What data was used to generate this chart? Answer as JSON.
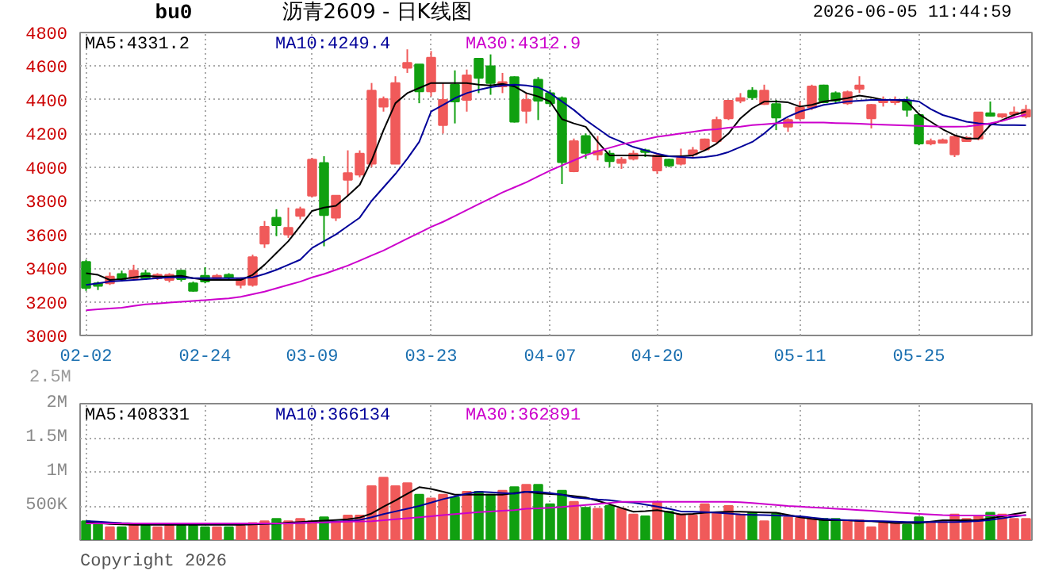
{
  "chart_data": [
    {
      "type": "candlestick",
      "title": "沥青2609 - 日K线图",
      "annotations": [
        "bu0",
        "2026-06-05 11:44:59",
        "2.5M"
      ],
      "categories": [
        "02-02",
        null,
        null,
        null,
        null,
        null,
        null,
        null,
        null,
        null,
        "02-24",
        null,
        null,
        null,
        null,
        null,
        null,
        null,
        null,
        "03-09",
        null,
        null,
        null,
        null,
        null,
        null,
        null,
        null,
        null,
        "03-23",
        null,
        null,
        null,
        null,
        null,
        null,
        null,
        null,
        null,
        "04-07",
        null,
        null,
        null,
        null,
        null,
        null,
        null,
        null,
        "04-20",
        null,
        null,
        null,
        null,
        null,
        null,
        null,
        null,
        null,
        null,
        null,
        "05-11",
        null,
        null,
        null,
        null,
        null,
        null,
        null,
        null,
        null,
        "05-25",
        null,
        null,
        null,
        null,
        null,
        null,
        null,
        null,
        null
      ],
      "ohlc": [
        [
          3437,
          3450,
          3265,
          3283
        ],
        [
          3310,
          3320,
          3270,
          3295
        ],
        [
          3310,
          3375,
          3300,
          3350
        ],
        [
          3365,
          3385,
          3320,
          3335
        ],
        [
          3340,
          3420,
          3330,
          3385
        ],
        [
          3370,
          3390,
          3330,
          3340
        ],
        [
          3340,
          3370,
          3330,
          3360
        ],
        [
          3330,
          3370,
          3315,
          3360
        ],
        [
          3385,
          3390,
          3320,
          3335
        ],
        [
          3310,
          3320,
          3260,
          3265
        ],
        [
          3355,
          3405,
          3310,
          3320
        ],
        [
          3340,
          3365,
          3330,
          3355
        ],
        [
          3360,
          3370,
          3330,
          3345
        ],
        [
          3300,
          3345,
          3280,
          3335
        ],
        [
          3300,
          3480,
          3290,
          3465
        ],
        [
          3545,
          3680,
          3520,
          3645
        ],
        [
          3700,
          3750,
          3590,
          3655
        ],
        [
          3600,
          3760,
          3580,
          3640
        ],
        [
          3710,
          3765,
          3690,
          3750
        ],
        [
          3830,
          4055,
          3820,
          4045
        ],
        [
          4025,
          4065,
          3530,
          3715
        ],
        [
          3700,
          3830,
          3680,
          3830
        ],
        [
          3925,
          4100,
          3830,
          3965
        ],
        [
          3955,
          4100,
          3940,
          4080
        ],
        [
          4020,
          4500,
          4000,
          4455
        ],
        [
          4360,
          4420,
          4330,
          4405
        ],
        [
          4020,
          4540,
          4020,
          4500
        ],
        [
          4590,
          4700,
          4560,
          4620
        ],
        [
          4610,
          4610,
          4380,
          4450
        ],
        [
          4450,
          4690,
          4420,
          4650
        ],
        [
          4250,
          4500,
          4200,
          4400
        ],
        [
          4490,
          4575,
          4260,
          4390
        ],
        [
          4400,
          4580,
          4330,
          4545
        ],
        [
          4645,
          4645,
          4440,
          4530
        ],
        [
          4600,
          4670,
          4430,
          4500
        ],
        [
          4480,
          4560,
          4440,
          4505
        ],
        [
          4535,
          4540,
          4265,
          4270
        ],
        [
          4335,
          4440,
          4260,
          4400
        ],
        [
          4520,
          4535,
          4280,
          4395
        ],
        [
          4440,
          4460,
          4360,
          4380
        ],
        [
          4410,
          4420,
          3900,
          4030
        ],
        [
          3975,
          4170,
          3970,
          4155
        ],
        [
          4185,
          4200,
          4050,
          4085
        ],
        [
          4075,
          4185,
          4040,
          4095
        ],
        [
          4080,
          4100,
          4000,
          4035
        ],
        [
          4025,
          4060,
          3990,
          4045
        ],
        [
          4050,
          4100,
          4040,
          4080
        ],
        [
          4100,
          4110,
          4060,
          4090
        ],
        [
          3980,
          4080,
          3960,
          4070
        ],
        [
          4045,
          4050,
          4000,
          4010
        ],
        [
          4020,
          4110,
          4010,
          4055
        ],
        [
          4075,
          4120,
          4060,
          4100
        ],
        [
          4105,
          4170,
          4100,
          4165
        ],
        [
          4155,
          4300,
          4140,
          4280
        ],
        [
          4290,
          4395,
          4280,
          4395
        ],
        [
          4395,
          4440,
          4380,
          4410
        ],
        [
          4455,
          4475,
          4400,
          4415
        ],
        [
          4375,
          4490,
          4370,
          4455
        ],
        [
          4375,
          4400,
          4220,
          4295
        ],
        [
          4240,
          4290,
          4210,
          4280
        ],
        [
          4290,
          4390,
          4280,
          4355
        ],
        [
          4355,
          4490,
          4340,
          4480
        ],
        [
          4485,
          4490,
          4380,
          4385
        ],
        [
          4440,
          4450,
          4380,
          4395
        ],
        [
          4380,
          4455,
          4370,
          4445
        ],
        [
          4465,
          4540,
          4440,
          4485
        ],
        [
          4290,
          4375,
          4230,
          4370
        ],
        [
          4385,
          4420,
          4360,
          4400
        ],
        [
          4385,
          4420,
          4370,
          4395
        ],
        [
          4390,
          4420,
          4300,
          4340
        ],
        [
          4310,
          4320,
          4130,
          4140
        ],
        [
          4140,
          4170,
          4130,
          4155
        ],
        [
          4145,
          4170,
          4140,
          4160
        ],
        [
          4075,
          4190,
          4060,
          4180
        ],
        [
          4155,
          4185,
          4150,
          4175
        ],
        [
          4170,
          4325,
          4160,
          4325
        ],
        [
          4320,
          4390,
          4300,
          4305
        ],
        [
          4300,
          4320,
          4290,
          4315
        ],
        [
          4315,
          4360,
          4300,
          4325
        ],
        [
          4300,
          4370,
          4290,
          4340
        ]
      ],
      "series": [
        {
          "name": "MA5:4331.2",
          "type": "line",
          "color": "#000000",
          "values": [
            3370,
            3360,
            3330,
            3335,
            3345,
            3355,
            3350,
            3350,
            3355,
            3340,
            3330,
            3330,
            3330,
            3330,
            3360,
            3420,
            3490,
            3560,
            3650,
            3740,
            3760,
            3770,
            3830,
            3895,
            4040,
            4220,
            4380,
            4440,
            4470,
            4500,
            4500,
            4500,
            4500,
            4490,
            4485,
            4495,
            4480,
            4440,
            4420,
            4390,
            4285,
            4260,
            4240,
            4150,
            4070,
            4070,
            4070,
            4070,
            4065,
            4065,
            4065,
            4070,
            4100,
            4140,
            4200,
            4290,
            4350,
            4390,
            4390,
            4385,
            4360,
            4370,
            4390,
            4400,
            4410,
            4425,
            4415,
            4400,
            4400,
            4390,
            4315,
            4270,
            4225,
            4190,
            4170,
            4170,
            4250,
            4280,
            4310,
            4331
          ]
        },
        {
          "name": "MA10:4249.4",
          "type": "line",
          "color": "#000099",
          "values": [
            3300,
            3310,
            3320,
            3325,
            3330,
            3335,
            3340,
            3345,
            3345,
            3340,
            3340,
            3340,
            3340,
            3340,
            3345,
            3365,
            3390,
            3420,
            3450,
            3520,
            3560,
            3600,
            3650,
            3700,
            3800,
            3880,
            3960,
            4050,
            4150,
            4330,
            4370,
            4410,
            4440,
            4460,
            4475,
            4485,
            4490,
            4485,
            4475,
            4440,
            4390,
            4340,
            4280,
            4230,
            4180,
            4150,
            4120,
            4100,
            4080,
            4065,
            4060,
            4055,
            4060,
            4070,
            4090,
            4120,
            4150,
            4200,
            4260,
            4300,
            4330,
            4350,
            4370,
            4380,
            4390,
            4395,
            4400,
            4400,
            4400,
            4400,
            4390,
            4345,
            4310,
            4290,
            4270,
            4260,
            4255,
            4250,
            4250,
            4249
          ]
        },
        {
          "name": "MA30:4312.9",
          "type": "line",
          "color": "#cc00cc",
          "values": [
            3150,
            3155,
            3160,
            3165,
            3175,
            3185,
            3190,
            3195,
            3200,
            3205,
            3210,
            3215,
            3220,
            3230,
            3245,
            3260,
            3280,
            3300,
            3320,
            3345,
            3365,
            3390,
            3415,
            3445,
            3475,
            3505,
            3540,
            3575,
            3610,
            3645,
            3675,
            3710,
            3745,
            3780,
            3815,
            3850,
            3880,
            3910,
            3945,
            3980,
            4010,
            4040,
            4070,
            4095,
            4115,
            4135,
            4150,
            4165,
            4180,
            4190,
            4200,
            4210,
            4220,
            4225,
            4235,
            4240,
            4250,
            4255,
            4260,
            4265,
            4265,
            4265,
            4265,
            4262,
            4260,
            4258,
            4255,
            4252,
            4250,
            4248,
            4245,
            4243,
            4240,
            4240,
            4242,
            4250,
            4260,
            4275,
            4295,
            4313
          ]
        }
      ],
      "ylim": [
        3000,
        4800
      ],
      "yticks": [
        3000,
        3200,
        3400,
        3600,
        3800,
        4000,
        4200,
        4400,
        4600,
        4800
      ],
      "grid": true
    },
    {
      "type": "bar",
      "annotations": [
        "Copyright 2026"
      ],
      "categories": [
        null,
        null,
        null,
        null,
        null,
        null,
        null,
        null,
        null,
        null,
        null,
        null,
        null,
        null,
        null,
        null,
        null,
        null,
        null,
        null,
        null,
        null,
        null,
        null,
        null,
        null,
        null,
        null,
        null,
        null,
        null,
        null,
        null,
        null,
        null,
        null,
        null,
        null,
        null,
        null,
        null,
        null,
        null,
        null,
        null,
        null,
        null,
        null,
        null,
        null,
        null,
        null,
        null,
        null,
        null,
        null,
        null,
        null,
        null,
        null,
        null,
        null,
        null,
        null,
        null,
        null,
        null,
        null,
        null,
        null,
        null,
        null,
        null,
        null,
        null,
        null,
        null,
        null,
        null,
        null
      ],
      "values": [
        275000,
        250000,
        190000,
        190000,
        225000,
        210000,
        190000,
        210000,
        210000,
        210000,
        190000,
        190000,
        190000,
        210000,
        250000,
        275000,
        310000,
        275000,
        310000,
        275000,
        335000,
        260000,
        360000,
        360000,
        790000,
        915000,
        790000,
        835000,
        665000,
        610000,
        665000,
        625000,
        710000,
        710000,
        665000,
        725000,
        775000,
        810000,
        810000,
        525000,
        725000,
        560000,
        475000,
        460000,
        500000,
        460000,
        375000,
        350000,
        560000,
        415000,
        375000,
        360000,
        525000,
        390000,
        500000,
        375000,
        400000,
        275000,
        390000,
        335000,
        325000,
        310000,
        310000,
        310000,
        290000,
        290000,
        190000,
        250000,
        250000,
        225000,
        335000,
        265000,
        265000,
        375000,
        310000,
        350000,
        400000,
        375000,
        310000,
        310000
      ],
      "colors": [
        "#10a010",
        "#10a010",
        "#f05a5a",
        "#10a010",
        "#f05a5a",
        "#10a010",
        "#f05a5a",
        "#f05a5a",
        "#10a010",
        "#10a010",
        "#10a010",
        "#f05a5a",
        "#10a010",
        "#f05a5a",
        "#f05a5a",
        "#f05a5a",
        "#10a010",
        "#f05a5a",
        "#f05a5a",
        "#f05a5a",
        "#10a010",
        "#f05a5a",
        "#f05a5a",
        "#f05a5a",
        "#f05a5a",
        "#f05a5a",
        "#f05a5a",
        "#f05a5a",
        "#10a010",
        "#f05a5a",
        "#f05a5a",
        "#10a010",
        "#f05a5a",
        "#10a010",
        "#10a010",
        "#f05a5a",
        "#10a010",
        "#f05a5a",
        "#10a010",
        "#10a010",
        "#10a010",
        "#f05a5a",
        "#10a010",
        "#f05a5a",
        "#10a010",
        "#f05a5a",
        "#f05a5a",
        "#10a010",
        "#f05a5a",
        "#10a010",
        "#f05a5a",
        "#f05a5a",
        "#f05a5a",
        "#f05a5a",
        "#f05a5a",
        "#f05a5a",
        "#10a010",
        "#f05a5a",
        "#10a010",
        "#f05a5a",
        "#f05a5a",
        "#f05a5a",
        "#10a010",
        "#10a010",
        "#f05a5a",
        "#f05a5a",
        "#f05a5a",
        "#f05a5a",
        "#f05a5a",
        "#10a010",
        "#10a010",
        "#f05a5a",
        "#f05a5a",
        "#f05a5a",
        "#f05a5a",
        "#f05a5a",
        "#10a010",
        "#f05a5a",
        "#f05a5a",
        "#f05a5a"
      ],
      "series": [
        {
          "name": "MA5:408331",
          "type": "line",
          "color": "#000000",
          "values": [
            265000,
            250000,
            235000,
            230000,
            225000,
            225000,
            225000,
            225000,
            225000,
            225000,
            225000,
            225000,
            225000,
            225000,
            230000,
            235000,
            245000,
            255000,
            265000,
            275000,
            285000,
            295000,
            305000,
            330000,
            390000,
            490000,
            580000,
            680000,
            775000,
            750000,
            710000,
            665000,
            665000,
            665000,
            665000,
            665000,
            690000,
            710000,
            685000,
            675000,
            665000,
            645000,
            625000,
            575000,
            525000,
            470000,
            415000,
            425000,
            440000,
            410000,
            375000,
            385000,
            400000,
            410000,
            415000,
            415000,
            410000,
            405000,
            400000,
            370000,
            335000,
            310000,
            290000,
            290000,
            290000,
            280000,
            275000,
            265000,
            250000,
            250000,
            250000,
            270000,
            290000,
            290000,
            290000,
            290000,
            320000,
            350000,
            380000,
            408331
          ]
        },
        {
          "name": "MA10:366134",
          "type": "line",
          "color": "#000099",
          "values": [
            280000,
            270000,
            260000,
            250000,
            245000,
            240000,
            240000,
            240000,
            240000,
            240000,
            240000,
            240000,
            240000,
            240000,
            240000,
            240000,
            240000,
            245000,
            250000,
            255000,
            260000,
            270000,
            280000,
            295000,
            335000,
            380000,
            420000,
            460000,
            500000,
            550000,
            600000,
            640000,
            680000,
            710000,
            700000,
            690000,
            680000,
            710000,
            705000,
            690000,
            665000,
            625000,
            610000,
            595000,
            585000,
            560000,
            550000,
            520000,
            490000,
            460000,
            420000,
            415000,
            410000,
            400000,
            390000,
            375000,
            370000,
            365000,
            360000,
            355000,
            350000,
            330000,
            310000,
            300000,
            290000,
            285000,
            280000,
            275000,
            270000,
            265000,
            265000,
            265000,
            265000,
            265000,
            270000,
            280000,
            295000,
            320000,
            345000,
            366134
          ]
        },
        {
          "name": "MA30:362891",
          "type": "line",
          "color": "#cc00cc",
          "values": [
            245000,
            245000,
            245000,
            245000,
            245000,
            245000,
            245000,
            245000,
            245000,
            245000,
            245000,
            245000,
            245000,
            245000,
            245000,
            245000,
            245000,
            245000,
            250000,
            255000,
            260000,
            265000,
            270000,
            272000,
            275000,
            290000,
            305000,
            320000,
            335000,
            350000,
            365000,
            380000,
            395000,
            410000,
            420000,
            430000,
            440000,
            460000,
            465000,
            475000,
            485000,
            500000,
            515000,
            530000,
            545000,
            560000,
            560000,
            560000,
            560000,
            560000,
            560000,
            560000,
            560000,
            560000,
            560000,
            555000,
            545000,
            530000,
            515000,
            500000,
            490000,
            480000,
            470000,
            460000,
            450000,
            440000,
            430000,
            415000,
            405000,
            395000,
            385000,
            375000,
            365000,
            360000,
            360000,
            360000,
            360000,
            360000,
            362000,
            362891
          ]
        }
      ],
      "ylim": [
        0,
        2000000
      ],
      "yticks": [
        {
          "value": 500000,
          "label": "500K"
        },
        {
          "value": 1000000,
          "label": "1M"
        },
        {
          "value": 1500000,
          "label": "1.5M"
        },
        {
          "value": 2000000,
          "label": "2M"
        }
      ],
      "grid": true,
      "tick_labels": "y"
    }
  ]
}
